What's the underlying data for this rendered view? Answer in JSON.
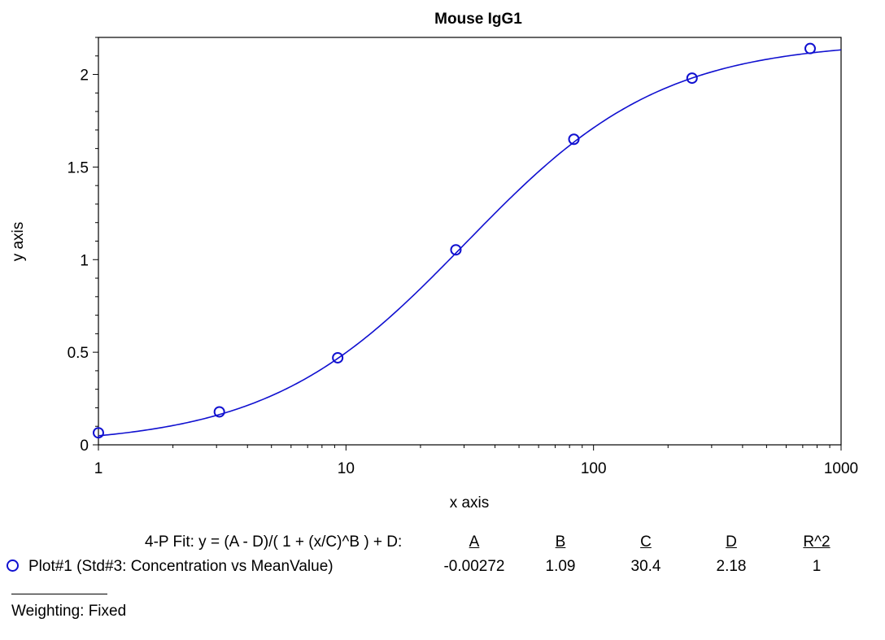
{
  "chart_data": {
    "type": "scatter",
    "title": "Mouse IgG1",
    "xlabel": "x axis",
    "ylabel": "y axis",
    "xscale": "log",
    "xlim": [
      1,
      1000
    ],
    "ylim": [
      0,
      2.2
    ],
    "xticks": [
      1,
      10,
      100,
      1000
    ],
    "xtick_labels": [
      "1",
      "10",
      "100",
      "1000"
    ],
    "yticks": [
      0,
      0.5,
      1,
      1.5,
      2
    ],
    "ytick_labels": [
      "0",
      "0.5",
      "1",
      "1.5",
      "2"
    ],
    "grid": false,
    "series": [
      {
        "name": "Plot#1 (Std#3: Concentration vs MeanValue)",
        "x": [
          1,
          3.08,
          9.26,
          27.8,
          83.3,
          250,
          750
        ],
        "y": [
          0.065,
          0.178,
          0.47,
          1.053,
          1.65,
          1.98,
          2.14
        ],
        "color": "#1010d0",
        "marker": "circle-open"
      }
    ],
    "fit": {
      "equation": "4-P Fit: y = (A - D)/( 1 + (x/C)^B ) + D:",
      "A": -0.00272,
      "B": 1.09,
      "C": 30.4,
      "D": 2.18
    }
  },
  "fit_table": {
    "label": "4-P Fit: y = (A - D)/( 1 + (x/C)^B ) + D:",
    "headers": [
      "A",
      "B",
      "C",
      "D",
      "R^2"
    ],
    "row_label": "Plot#1 (Std#3: Concentration vs MeanValue)",
    "values": [
      "-0.00272",
      "1.09",
      "30.4",
      "2.18",
      "1"
    ]
  },
  "weighting": "Weighting: Fixed",
  "colors": {
    "series": "#1010d0",
    "axis": "#000000"
  }
}
